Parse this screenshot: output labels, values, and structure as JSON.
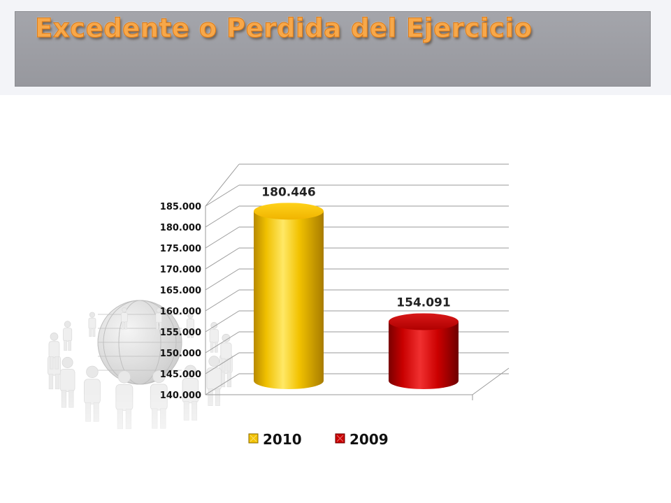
{
  "slide": {
    "title": "Excedente o Perdida del Ejercicio"
  },
  "colors": {
    "title_fill": "#f7a84a",
    "title_bar": "#9d9ea4",
    "series_2010": "#f2c200",
    "series_2009": "#cc0000"
  },
  "chart_data": {
    "type": "bar",
    "style": "3d-cylinder",
    "categories": [
      ""
    ],
    "series": [
      {
        "name": "2010",
        "values": [
          180446
        ],
        "data_label": "180.446",
        "color": "#f2c200"
      },
      {
        "name": "2009",
        "values": [
          154091
        ],
        "data_label": "154.091",
        "color": "#cc0000"
      }
    ],
    "ylim": [
      140000,
      185000
    ],
    "yticks": [
      {
        "value": 140000,
        "label": "140.000"
      },
      {
        "value": 145000,
        "label": "145.000"
      },
      {
        "value": 150000,
        "label": "150.000"
      },
      {
        "value": 155000,
        "label": "155.000"
      },
      {
        "value": 160000,
        "label": "160.000"
      },
      {
        "value": 165000,
        "label": "165.000"
      },
      {
        "value": 170000,
        "label": "170.000"
      },
      {
        "value": 175000,
        "label": "175.000"
      },
      {
        "value": 180000,
        "label": "180.000"
      },
      {
        "value": 185000,
        "label": "185.000"
      }
    ],
    "grid": true,
    "legend": "bottom"
  }
}
